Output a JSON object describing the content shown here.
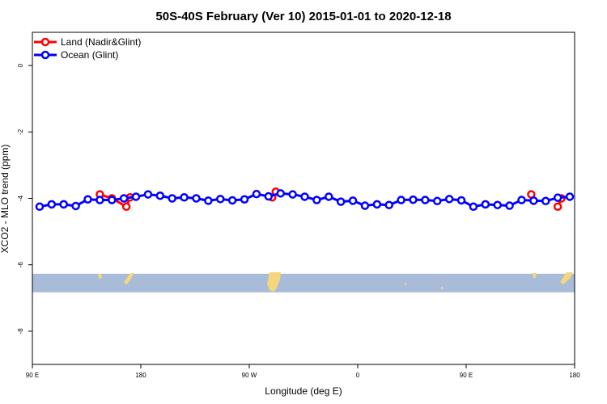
{
  "chart_data": {
    "type": "line",
    "title": "50S-40S February (Ver 10)   2015-01-01 to 2020-12-18",
    "xlabel": "Longitude (deg E)",
    "ylabel": "XCO2 - MLO trend (ppm)",
    "xlim": [
      90,
      540
    ],
    "ylim": [
      -9,
      1
    ],
    "x_ticks": [
      {
        "value": 90,
        "label": "90 E"
      },
      {
        "value": 180,
        "label": "180"
      },
      {
        "value": 270,
        "label": "90 W"
      },
      {
        "value": 360,
        "label": "0"
      },
      {
        "value": 450,
        "label": "90 E"
      },
      {
        "value": 540,
        "label": "180"
      }
    ],
    "y_ticks": [
      {
        "value": 0,
        "label": "0"
      },
      {
        "value": -2,
        "label": "-2"
      },
      {
        "value": -4,
        "label": "-4"
      },
      {
        "value": -6,
        "label": "-6"
      },
      {
        "value": -8,
        "label": "-8"
      }
    ],
    "grid": false,
    "legend_position": "top-left",
    "map_strip": {
      "y_range": [
        -6.83,
        -6.27
      ],
      "ocean_color": "#a8bcd9",
      "land_color": "#f5d67a"
    },
    "series": [
      {
        "name": "Land (Nadir&Glint)",
        "color": "#ff0000",
        "segments": [
          [
            [
              146,
              -3.88
            ],
            [
              156,
              -4.0
            ],
            [
              168,
              -4.25
            ],
            [
              171,
              -3.97
            ]
          ],
          [
            [
              289,
              -3.97
            ],
            [
              292,
              -3.8
            ]
          ],
          [
            [
              504,
              -3.88
            ]
          ],
          [
            [
              526,
              -4.25
            ],
            [
              529,
              -4.0
            ]
          ]
        ]
      },
      {
        "name": "Ocean (Glint)",
        "color": "#0000ff",
        "x": [
          96,
          106,
          116,
          126,
          136,
          146,
          156,
          166,
          176,
          186,
          196,
          206,
          216,
          226,
          236,
          246,
          256,
          266,
          276,
          286,
          296,
          306,
          316,
          326,
          336,
          346,
          356,
          366,
          376,
          386,
          396,
          406,
          416,
          426,
          436,
          446,
          456,
          466,
          476,
          486,
          496,
          506,
          516,
          526,
          536
        ],
        "values": [
          -4.25,
          -4.18,
          -4.18,
          -4.23,
          -4.03,
          -4.05,
          -4.05,
          -4.0,
          -3.95,
          -3.88,
          -3.92,
          -4.0,
          -3.97,
          -4.0,
          -4.07,
          -4.02,
          -4.06,
          -4.03,
          -3.87,
          -3.94,
          -3.85,
          -3.88,
          -3.95,
          -4.05,
          -3.95,
          -4.1,
          -4.07,
          -4.22,
          -4.18,
          -4.2,
          -4.05,
          -4.04,
          -4.05,
          -4.08,
          -4.02,
          -4.06,
          -4.25,
          -4.18,
          -4.2,
          -4.22,
          -4.05,
          -4.07,
          -4.08,
          -3.98,
          -3.95
        ]
      }
    ]
  }
}
